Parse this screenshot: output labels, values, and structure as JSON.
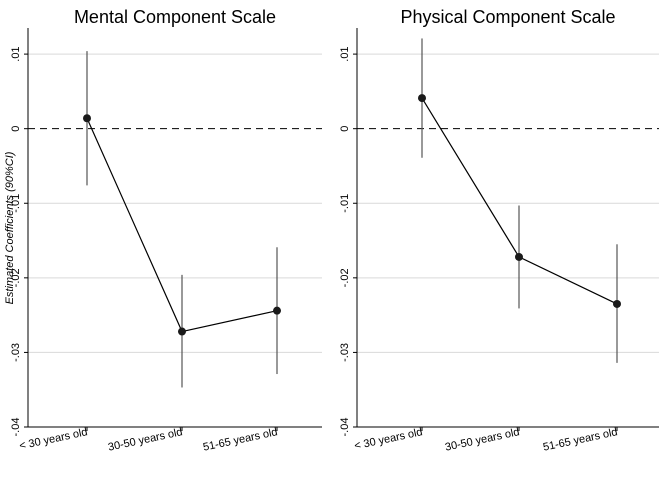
{
  "y_axis_label": "Estimated Coefficients (90%CI)",
  "chart_data": [
    {
      "type": "scatter",
      "title": "Mental Component Scale",
      "xlabel": "",
      "ylabel": "Estimated Coefficients (90%CI)",
      "categories": [
        "< 30 years old",
        "30-50 years old",
        "51-65 years old"
      ],
      "values": [
        0.0014,
        -0.0272,
        -0.0244
      ],
      "ci_low": [
        -0.0076,
        -0.0347,
        -0.0329
      ],
      "ci_high": [
        0.0104,
        -0.0196,
        -0.0159
      ],
      "connected": true,
      "reference_line": 0,
      "ylim": [
        -0.04,
        0.0135
      ],
      "yticks": [
        0.01,
        0,
        -0.01,
        -0.02,
        -0.03,
        -0.04
      ],
      "ytick_labels": [
        ".01",
        "0",
        "-.01",
        "-.02",
        "-.03",
        "-.04"
      ],
      "grid": true
    },
    {
      "type": "scatter",
      "title": "Physical Component Scale",
      "xlabel": "",
      "ylabel": "",
      "categories": [
        "< 30 years old",
        "30-50 years old",
        "51-65 years old"
      ],
      "values": [
        0.0041,
        -0.0172,
        -0.0235
      ],
      "ci_low": [
        -0.0039,
        -0.0241,
        -0.0314
      ],
      "ci_high": [
        0.0121,
        -0.0103,
        -0.0155
      ],
      "connected": true,
      "reference_line": 0,
      "ylim": [
        -0.04,
        0.0135
      ],
      "yticks": [
        0.01,
        0,
        -0.01,
        -0.02,
        -0.03,
        -0.04
      ],
      "ytick_labels": [
        ".01",
        "0",
        "-.01",
        "-.02",
        "-.03",
        "-.04"
      ],
      "grid": true
    }
  ]
}
